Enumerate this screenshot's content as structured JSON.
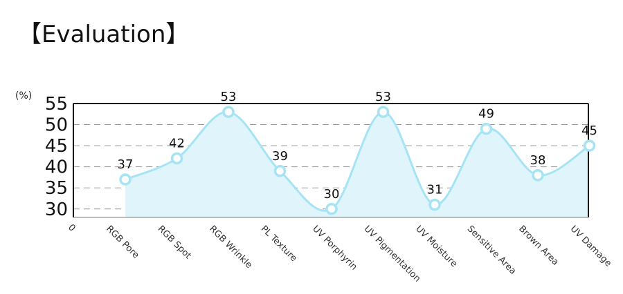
{
  "header": {
    "title": "【Evaluation】"
  },
  "chart_data": {
    "type": "area",
    "ylabel_unit": "(%)",
    "x_origin_label": "0",
    "categories": [
      "RGB Pore",
      "RGB Spot",
      "RGB Wrinkle",
      "PL Texture",
      "UV Porphyrin",
      "UV Pigmentation",
      "UV Moisture",
      "Sensitive Area",
      "Brown Area",
      "UV Damage"
    ],
    "values": [
      37,
      42,
      53,
      39,
      30,
      53,
      31,
      49,
      38,
      45
    ],
    "ylim": [
      28,
      55
    ],
    "yticks": [
      30,
      35,
      40,
      45,
      50,
      55
    ],
    "grid": true,
    "smooth": true,
    "colors": {
      "line": "#a6e3f3",
      "fill": "#dff4fb",
      "grid": "#999999",
      "axis": "#000000"
    }
  }
}
